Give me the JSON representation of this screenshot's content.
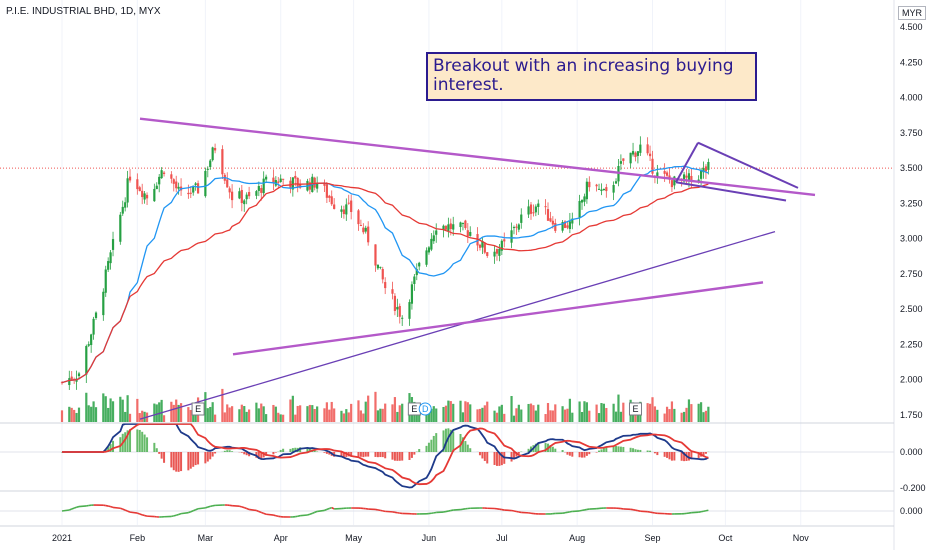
{
  "header": {
    "title": "P.I.E. INDUSTRIAL BHD, 1D, MYX",
    "currency": "MYR"
  },
  "annotation": {
    "text": "Breakout with an increasing buying interest."
  },
  "colors": {
    "up": "#26a043",
    "down": "#ef5350",
    "ma_fast": "#2196f3",
    "ma_slow": "#e53935",
    "trend_line": "#b459c9",
    "support_line": "#6a3fb5",
    "macd_line": "#1e3a8a",
    "signal_line": "#e53935",
    "osc_green": "#4caf50",
    "osc_red": "#e53935"
  },
  "chart_data": {
    "type": "candlestick",
    "x_labels": [
      "2021",
      "Feb",
      "Mar",
      "Apr",
      "May",
      "Jun",
      "Jul",
      "Aug",
      "Sep",
      "Oct",
      "Nov"
    ],
    "price_axis_ticks": [
      "4.500",
      "4.250",
      "4.000",
      "3.750",
      "3.500",
      "3.250",
      "3.000",
      "2.750",
      "2.500",
      "2.250",
      "2.000",
      "1.750"
    ],
    "macd_axis_ticks": [
      "0.000",
      "-0.200"
    ],
    "osc_axis_ticks": [
      "0.000"
    ],
    "price_range": [
      1.7,
      4.55
    ],
    "last_price": 3.5,
    "price_path_keypoints": [
      [
        "2021-01-01",
        1.98
      ],
      [
        "2021-01-08",
        2.05
      ],
      [
        "2021-01-15",
        2.45
      ],
      [
        "2021-01-22",
        2.95
      ],
      [
        "2021-01-29",
        3.45
      ],
      [
        "2021-02-05",
        3.3
      ],
      [
        "2021-02-12",
        3.5
      ],
      [
        "2021-02-19",
        3.3
      ],
      [
        "2021-02-26",
        3.35
      ],
      [
        "2021-03-05",
        3.65
      ],
      [
        "2021-03-12",
        3.3
      ],
      [
        "2021-03-19",
        3.28
      ],
      [
        "2021-03-26",
        3.4
      ],
      [
        "2021-04-02",
        3.42
      ],
      [
        "2021-04-09",
        3.38
      ],
      [
        "2021-04-16",
        3.4
      ],
      [
        "2021-04-23",
        3.25
      ],
      [
        "2021-04-30",
        3.2
      ],
      [
        "2021-05-07",
        3.0
      ],
      [
        "2021-05-14",
        2.65
      ],
      [
        "2021-05-21",
        2.45
      ],
      [
        "2021-05-28",
        2.8
      ],
      [
        "2021-06-04",
        3.1
      ],
      [
        "2021-06-11",
        3.08
      ],
      [
        "2021-06-18",
        3.05
      ],
      [
        "2021-06-25",
        2.9
      ],
      [
        "2021-07-02",
        2.95
      ],
      [
        "2021-07-09",
        3.15
      ],
      [
        "2021-07-16",
        3.25
      ],
      [
        "2021-07-23",
        3.1
      ],
      [
        "2021-07-30",
        3.1
      ],
      [
        "2021-08-06",
        3.4
      ],
      [
        "2021-08-13",
        3.3
      ],
      [
        "2021-08-20",
        3.55
      ],
      [
        "2021-08-27",
        3.65
      ],
      [
        "2021-09-03",
        3.45
      ],
      [
        "2021-09-10",
        3.4
      ],
      [
        "2021-09-17",
        3.42
      ],
      [
        "2021-09-24",
        3.5
      ]
    ],
    "event_markers": [
      {
        "label": "E",
        "date": "2021-02-26"
      },
      {
        "label": "E",
        "date": "2021-05-26"
      },
      {
        "label": "D",
        "date": "2021-05-28"
      },
      {
        "label": "E",
        "date": "2021-08-25"
      }
    ],
    "series": [
      {
        "values_ref": "price_path_keypoints"
      }
    ]
  }
}
